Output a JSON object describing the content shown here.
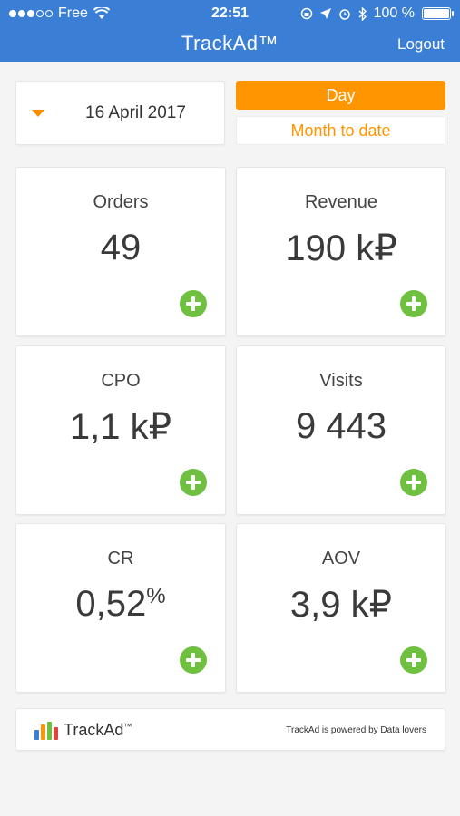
{
  "status_bar": {
    "carrier": "Free",
    "time": "22:51",
    "battery": "100 %"
  },
  "app": {
    "title": "TrackAd™",
    "logout_label": "Logout"
  },
  "date_selector": {
    "date": "16 April 2017"
  },
  "period": {
    "day_label": "Day",
    "month_label": "Month to date",
    "selected": "Day"
  },
  "metrics": [
    {
      "label": "Orders",
      "value": "49"
    },
    {
      "label": "Revenue",
      "value": "190 k₽"
    },
    {
      "label": "CPO",
      "value": "1,1 k₽"
    },
    {
      "label": "Visits",
      "value": "9 443"
    },
    {
      "label": "CR",
      "value": "0,52",
      "suffix": "%"
    },
    {
      "label": "AOV",
      "value": "3,9 k₽"
    }
  ],
  "footer": {
    "brand": "TrackAd",
    "tm": "™",
    "powered_by": "TrackAd is powered by Data lovers"
  },
  "colors": {
    "header": "#3a7fd5",
    "accent_orange": "#ff9500",
    "plus_green": "#6fc040",
    "logo_bars": [
      "#3a7fd5",
      "#ff9500",
      "#6fc040",
      "#e0443e"
    ]
  },
  "icons": {
    "wifi": "wifi-icon",
    "lock_rotation": "rotation-lock-icon",
    "location": "location-arrow-icon",
    "alarm": "alarm-icon",
    "bluetooth": "bluetooth-icon",
    "battery": "battery-icon",
    "caret": "caret-down-icon",
    "plus": "plus-circle-icon"
  }
}
